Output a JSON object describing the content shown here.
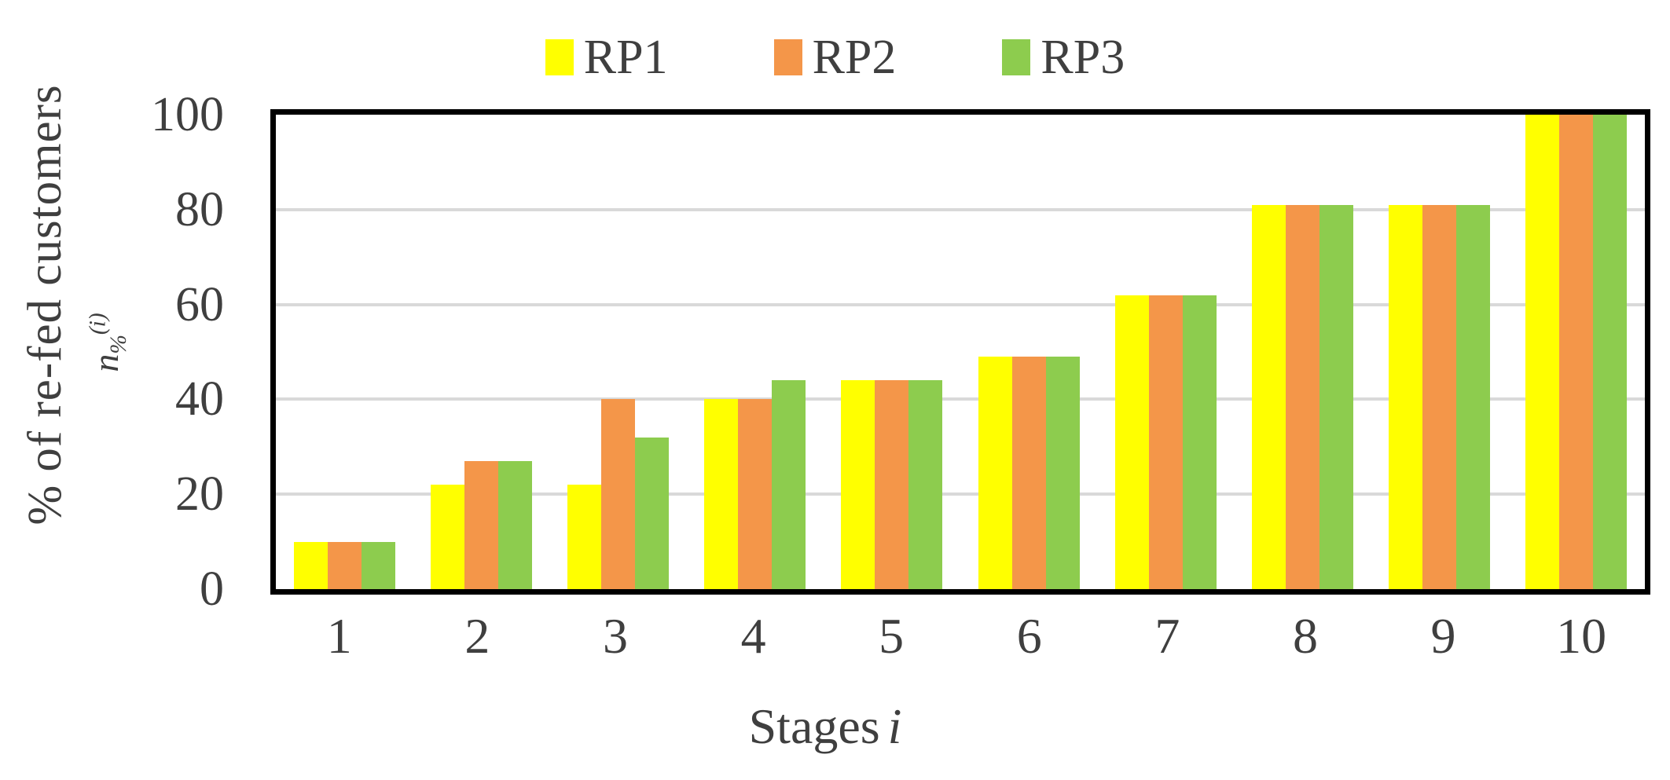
{
  "chart_data": {
    "type": "bar",
    "title": "",
    "categories": [
      "1",
      "2",
      "3",
      "4",
      "5",
      "6",
      "7",
      "8",
      "9",
      "10"
    ],
    "series": [
      {
        "name": "RP1",
        "color": "#ffff00",
        "values": [
          10,
          22,
          22,
          40,
          44,
          49,
          62,
          81,
          81,
          100
        ]
      },
      {
        "name": "RP2",
        "color": "#f49649",
        "values": [
          10,
          27,
          40,
          40,
          44,
          49,
          62,
          81,
          81,
          100
        ]
      },
      {
        "name": "RP3",
        "color": "#8dcc4e",
        "values": [
          10,
          27,
          32,
          44,
          44,
          49,
          62,
          81,
          81,
          100
        ]
      }
    ],
    "xlabel": {
      "text": "Stages",
      "var": "i"
    },
    "ylabel": {
      "line1": "% of re-fed customers",
      "var": "n",
      "sub": "%",
      "sup": "(i)"
    },
    "ylim": [
      0,
      100
    ],
    "yticks": [
      0,
      20,
      40,
      60,
      80,
      100
    ],
    "gridlines": [
      20,
      40,
      60,
      80
    ],
    "grid": "horizontal",
    "legend_position": "top-center"
  },
  "colors": {
    "background": "#ffffff",
    "text": "#3f3f3f",
    "frame": "#000000",
    "gridline": "#d9d9d9"
  }
}
